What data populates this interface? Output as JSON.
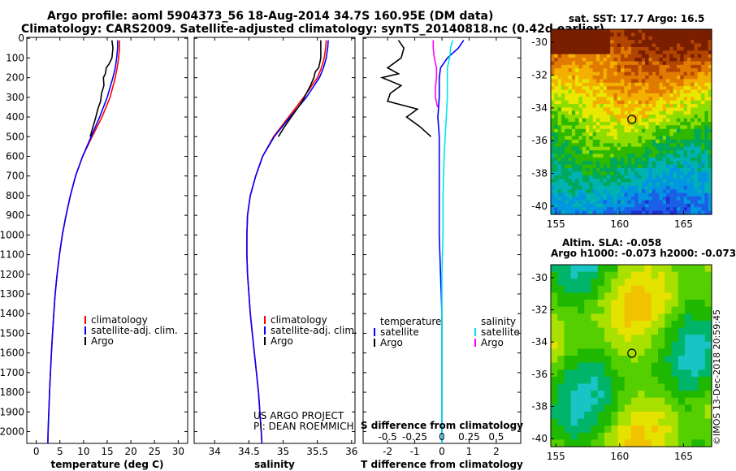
{
  "header": {
    "line1": "Argo profile: aoml 5904373_56 18-Aug-2014 34.7S 160.95E (DM data)",
    "line2": "Climatology: CARS2009. Satellite-adjusted climatology: synTS_20140818.nc (0.42d earlier)"
  },
  "depth_ticks": [
    "0",
    "100",
    "200",
    "300",
    "400",
    "500",
    "600",
    "700",
    "800",
    "900",
    "1000",
    "1100",
    "1200",
    "1300",
    "1400",
    "1500",
    "1600",
    "1700",
    "1800",
    "1900",
    "2000"
  ],
  "colors": {
    "climatology": "#ff0000",
    "satellite": "#0000ff",
    "argo": "#000000",
    "sat_t_diff": "#0000ff",
    "sat_s_diff": "#00e5ee",
    "argo_s_diff": "#ff00ff"
  },
  "chart_data": [
    {
      "type": "line",
      "xlabel": "temperature (deg C)",
      "xlim": [
        -2,
        32
      ],
      "xticks": [
        "0",
        "5",
        "10",
        "15",
        "20",
        "25",
        "30"
      ],
      "ylim": [
        2060,
        -5
      ],
      "legend": [
        "climatology",
        "satellite-adj. clim.",
        "Argo"
      ],
      "series": [
        {
          "name": "climatology",
          "depth": [
            10,
            50,
            100,
            150,
            200,
            300,
            400,
            500,
            600,
            700,
            800,
            900,
            1000,
            1100,
            1200,
            1300,
            1400,
            1500,
            1600,
            1700,
            1800,
            1900,
            2000,
            2060
          ],
          "values": [
            17.6,
            17.6,
            17.4,
            17.1,
            16.7,
            15.6,
            13.9,
            11.8,
            9.8,
            8.3,
            7.2,
            6.3,
            5.5,
            4.9,
            4.4,
            4.0,
            3.7,
            3.45,
            3.2,
            3.0,
            2.8,
            2.65,
            2.5,
            2.45
          ]
        },
        {
          "name": "satellite-adj. clim.",
          "depth": [
            10,
            50,
            100,
            150,
            200,
            300,
            400,
            500,
            600,
            700,
            800,
            900,
            1000,
            1100,
            1200,
            1300,
            1400,
            1500,
            1600,
            1700,
            1800,
            1900,
            2000,
            2060
          ],
          "values": [
            17.2,
            17.2,
            17.0,
            16.7,
            16.2,
            15.0,
            13.4,
            11.6,
            9.8,
            8.3,
            7.2,
            6.3,
            5.5,
            4.9,
            4.4,
            4.0,
            3.7,
            3.45,
            3.2,
            3.0,
            2.8,
            2.65,
            2.5,
            2.45
          ]
        },
        {
          "name": "Argo",
          "depth": [
            10,
            50,
            100,
            130,
            150,
            180,
            200,
            240,
            280,
            320,
            360,
            400,
            450,
            500
          ],
          "values": [
            16.0,
            16.2,
            16.0,
            15.4,
            14.8,
            14.6,
            14.2,
            14.3,
            13.8,
            13.6,
            13.0,
            12.6,
            12.0,
            11.4
          ]
        }
      ]
    },
    {
      "type": "line",
      "xlabel": "salinity",
      "xlim": [
        33.7,
        36.05
      ],
      "xticks": [
        "34",
        "34.5",
        "35",
        "35.5",
        "36"
      ],
      "ylim": [
        2060,
        -5
      ],
      "legend": [
        "climatology",
        "satellite-adj. clim.",
        "Argo"
      ],
      "series": [
        {
          "name": "climatology",
          "depth": [
            10,
            50,
            100,
            150,
            200,
            300,
            400,
            500,
            600,
            700,
            800,
            900,
            1000,
            1100,
            1200,
            1300,
            1400,
            1500,
            1600,
            1700,
            1800,
            1900,
            2000,
            2060
          ],
          "values": [
            35.63,
            35.62,
            35.6,
            35.56,
            35.5,
            35.3,
            35.08,
            34.86,
            34.7,
            34.6,
            34.52,
            34.48,
            34.47,
            34.47,
            34.48,
            34.5,
            34.52,
            34.55,
            34.58,
            34.61,
            34.64,
            34.66,
            34.68,
            34.69
          ]
        },
        {
          "name": "satellite-adj. clim.",
          "depth": [
            10,
            50,
            100,
            150,
            200,
            300,
            400,
            500,
            600,
            700,
            800,
            900,
            1000,
            1100,
            1200,
            1300,
            1400,
            1500,
            1600,
            1700,
            1800,
            1900,
            2000,
            2060
          ],
          "values": [
            35.66,
            35.65,
            35.63,
            35.59,
            35.53,
            35.34,
            35.1,
            34.87,
            34.7,
            34.6,
            34.52,
            34.48,
            34.47,
            34.47,
            34.48,
            34.5,
            34.52,
            34.55,
            34.58,
            34.61,
            34.64,
            34.66,
            34.68,
            34.69
          ]
        },
        {
          "name": "Argo",
          "depth": [
            10,
            50,
            100,
            150,
            170,
            200,
            240,
            280,
            320,
            360,
            400,
            450,
            500
          ],
          "values": [
            35.55,
            35.55,
            35.55,
            35.52,
            35.47,
            35.45,
            35.4,
            35.34,
            35.28,
            35.2,
            35.12,
            35.02,
            34.93
          ]
        }
      ]
    },
    {
      "type": "line",
      "xlabel": "T difference from climatology",
      "xlabel2": "S difference from climatology",
      "xlim": [
        -2.9,
        2.9
      ],
      "xticks": [
        "-2",
        "-1",
        "0",
        "1",
        "2"
      ],
      "xticks2": [
        "-0.5",
        "-0.25",
        "0",
        "0.25",
        "0.5"
      ],
      "ylim": [
        2060,
        -5
      ],
      "legend_temperature": {
        "title": "temperature",
        "items": [
          "satellite",
          "Argo"
        ]
      },
      "legend_salinity": {
        "title": "salinity",
        "items": [
          "satellite",
          "Argo"
        ]
      },
      "series": [
        {
          "name": "satellite",
          "depth": [
            10,
            50,
            100,
            150,
            200,
            300,
            400,
            500,
            600,
            700,
            800,
            900,
            1000,
            1200,
            1400,
            1500,
            1600,
            1700,
            1800,
            1900,
            2060
          ],
          "values": [
            0.8,
            0.6,
            0.2,
            -0.05,
            -0.1,
            -0.1,
            -0.15,
            -0.1,
            -0.1,
            -0.1,
            -0.1,
            -0.1,
            -0.1,
            -0.05,
            0.0,
            0.0,
            0.0,
            0.0,
            0.0,
            0.0,
            0.0
          ]
        },
        {
          "name": "Argo",
          "depth": [
            10,
            50,
            100,
            130,
            150,
            180,
            200,
            240,
            280,
            320,
            360,
            400,
            450,
            500
          ],
          "values": [
            -1.6,
            -1.4,
            -1.5,
            -1.8,
            -2.0,
            -1.6,
            -2.2,
            -1.5,
            -1.9,
            -2.0,
            -0.9,
            -1.3,
            -0.8,
            -0.4
          ]
        },
        {
          "name": "salinity satellite",
          "depth": [
            10,
            50,
            100,
            150,
            200,
            300,
            400,
            500,
            600,
            800,
            1000,
            1200,
            1500,
            1800,
            2060
          ],
          "values": [
            0.1,
            0.08,
            0.07,
            0.05,
            0.05,
            0.05,
            0.04,
            0.03,
            0.02,
            0.01,
            0.01,
            0.0,
            0.0,
            0.0,
            0.0
          ]
        },
        {
          "name": "salinity Argo",
          "depth": [
            10,
            50,
            100,
            150,
            200,
            250,
            300,
            350
          ],
          "values": [
            -0.08,
            -0.08,
            -0.07,
            -0.05,
            -0.05,
            -0.06,
            -0.06,
            -0.04
          ]
        }
      ]
    }
  ],
  "footer": {
    "line1": "US ARGO PROJECT",
    "line2": "PI: DEAN ROEMMICH"
  },
  "maps": {
    "top": {
      "title": "sat. SST: 17.7 Argo: 16.5",
      "lat_ticks": [
        "-30",
        "-32",
        "-34",
        "-36",
        "-38",
        "-40"
      ],
      "lon_ticks": [
        "155",
        "160",
        "165"
      ]
    },
    "bottom": {
      "title1": "Altim. SLA: -0.058",
      "title2": "Argo h1000: -0.073 h2000: -0.073",
      "lat_ticks": [
        "-30",
        "-32",
        "-34",
        "-36",
        "-38",
        "-40"
      ],
      "lon_ticks": [
        "155",
        "160",
        "165"
      ]
    }
  },
  "stamp": "©IMOS 13-Dec-2018 20:59:45"
}
